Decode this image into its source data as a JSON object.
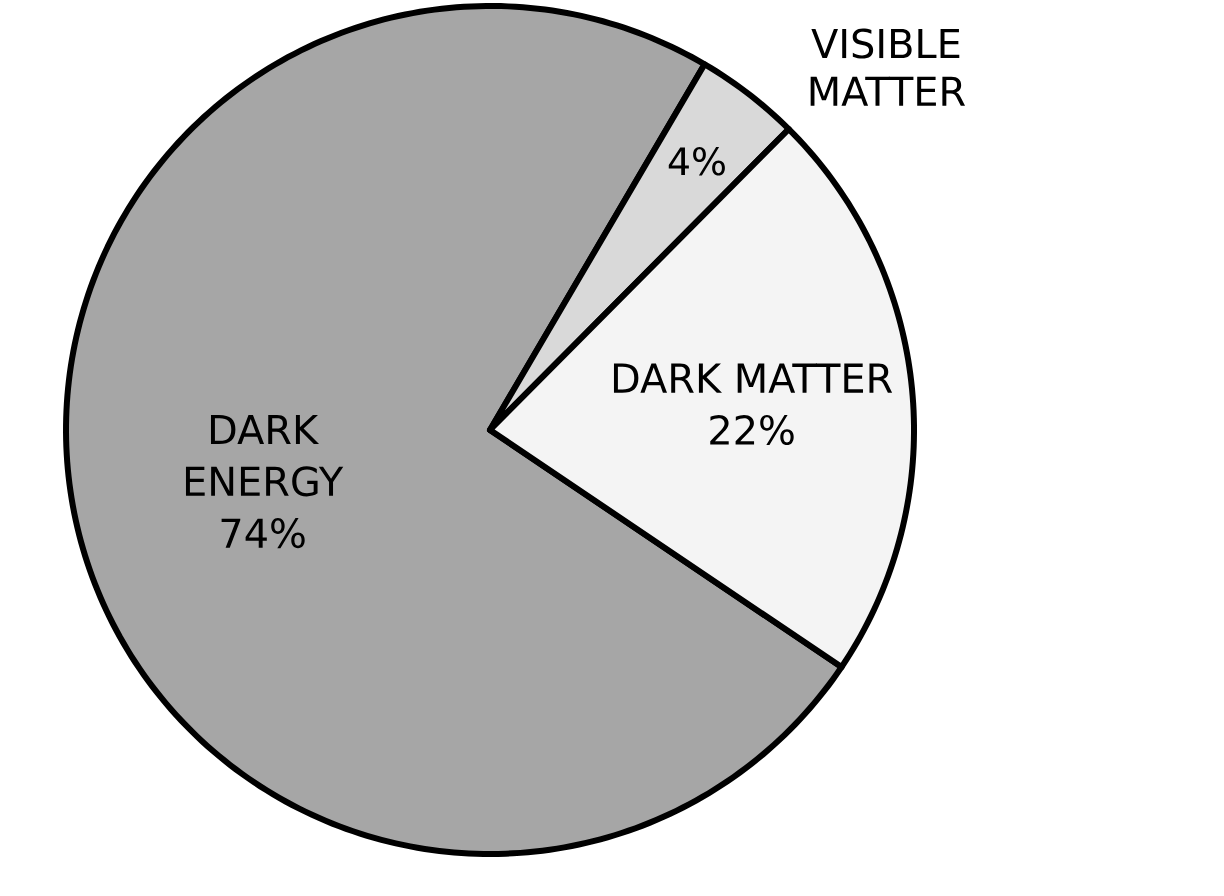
{
  "chart_data": {
    "type": "pie",
    "categories": [
      "DARK ENERGY",
      "VISIBLE MATTER",
      "DARK MATTER"
    ],
    "values": [
      74,
      4,
      22
    ],
    "value_labels": [
      "74%",
      "4%",
      "22%"
    ],
    "colors": [
      "#a6a6a6",
      "#d9d9d9",
      "#f4f4f4"
    ]
  }
}
